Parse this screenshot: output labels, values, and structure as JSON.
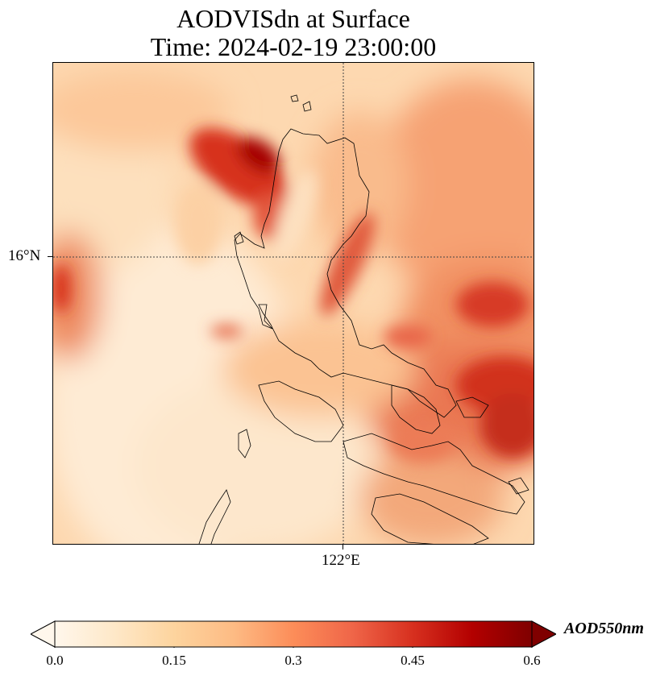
{
  "title": {
    "line1": "AODVISdn at Surface",
    "line2": "Time: 2024-02-19 23:00:00"
  },
  "axes": {
    "lat_label": "16°N",
    "lon_label": "122°E"
  },
  "colorbar": {
    "title": "AOD550nm",
    "ticks": [
      "0.0",
      "0.15",
      "0.3",
      "0.45",
      "0.6"
    ],
    "range": [
      0.0,
      0.6
    ],
    "extend": "both",
    "colormap": "OrRd",
    "colors": [
      "#fff7ec",
      "#fee8c8",
      "#fdd49e",
      "#fdbb84",
      "#fc8d59",
      "#ef6548",
      "#d7301f",
      "#b30000",
      "#7f0000"
    ]
  },
  "map": {
    "gridlines": "dotted",
    "coastline_color": "#000000",
    "field_description_background": "#fde3c4"
  }
}
